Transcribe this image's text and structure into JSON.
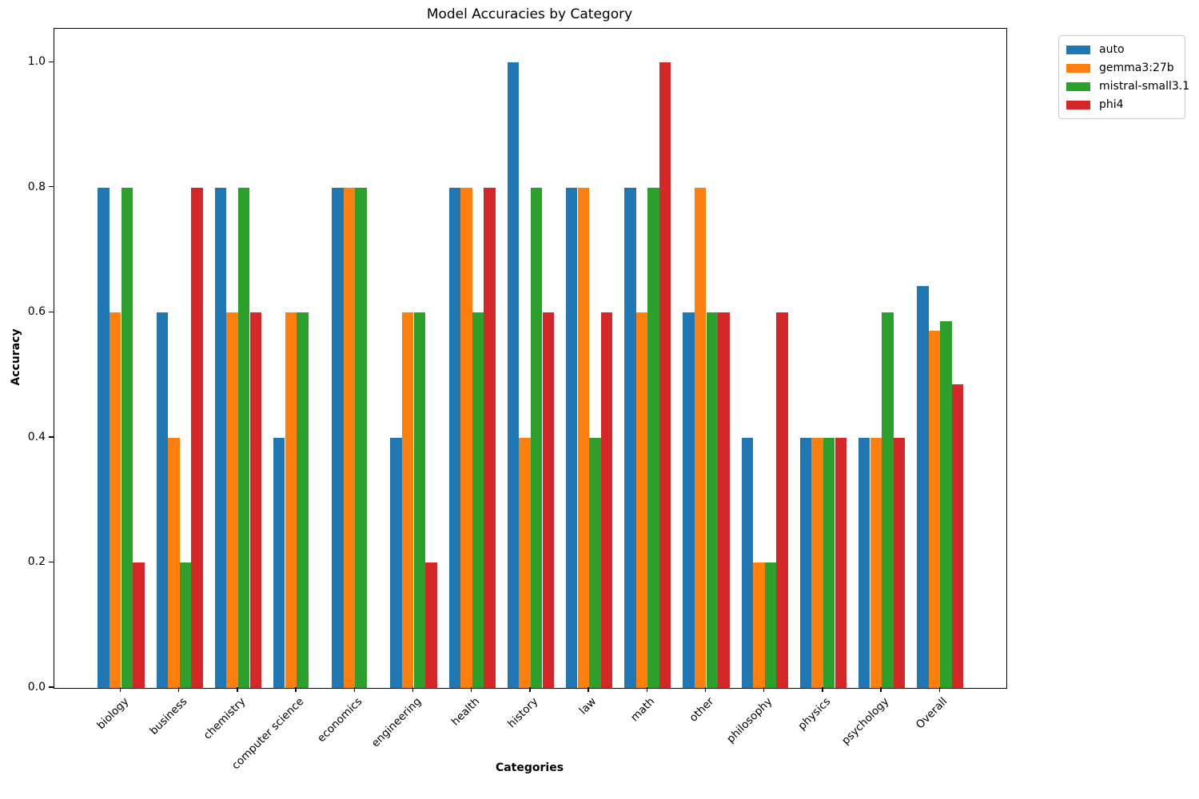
{
  "figure": {
    "title": "Model Accuracies by Category"
  },
  "chart_data": {
    "type": "bar",
    "title": "Model Accuracies by Category",
    "xlabel": "Categories",
    "ylabel": "Accuracy",
    "categories": [
      "biology",
      "business",
      "chemistry",
      "computer science",
      "economics",
      "engineering",
      "health",
      "history",
      "law",
      "math",
      "other",
      "philosophy",
      "physics",
      "psychology",
      "Overall"
    ],
    "series": [
      {
        "name": "auto",
        "color": "#1f77b4",
        "values": [
          0.8,
          0.6,
          0.8,
          0.4,
          0.8,
          0.4,
          0.8,
          1.0,
          0.8,
          0.8,
          0.6,
          0.4,
          0.4,
          0.4,
          0.643
        ]
      },
      {
        "name": "gemma3:27b",
        "color": "#ff7f0e",
        "values": [
          0.6,
          0.4,
          0.6,
          0.6,
          0.8,
          0.6,
          0.8,
          0.4,
          0.8,
          0.6,
          0.8,
          0.2,
          0.4,
          0.4,
          0.571
        ]
      },
      {
        "name": "mistral-small3.1",
        "color": "#2ca02c",
        "values": [
          0.8,
          0.2,
          0.8,
          0.6,
          0.8,
          0.6,
          0.6,
          0.8,
          0.4,
          0.8,
          0.6,
          0.2,
          0.4,
          0.6,
          0.586
        ]
      },
      {
        "name": "phi4",
        "color": "#d62728",
        "values": [
          0.2,
          0.8,
          0.6,
          0.0,
          0.0,
          0.2,
          0.8,
          0.6,
          0.6,
          1.0,
          0.6,
          0.6,
          0.4,
          0.4,
          0.486
        ]
      }
    ],
    "yticks": [
      0.0,
      0.2,
      0.4,
      0.6,
      0.8,
      1.0
    ],
    "ytick_labels": [
      "0.0",
      "0.2",
      "0.4",
      "0.6",
      "0.8",
      "1.0"
    ],
    "ylim": [
      0,
      1.054
    ],
    "grid": false,
    "legend_position": "outside-upper-right"
  }
}
